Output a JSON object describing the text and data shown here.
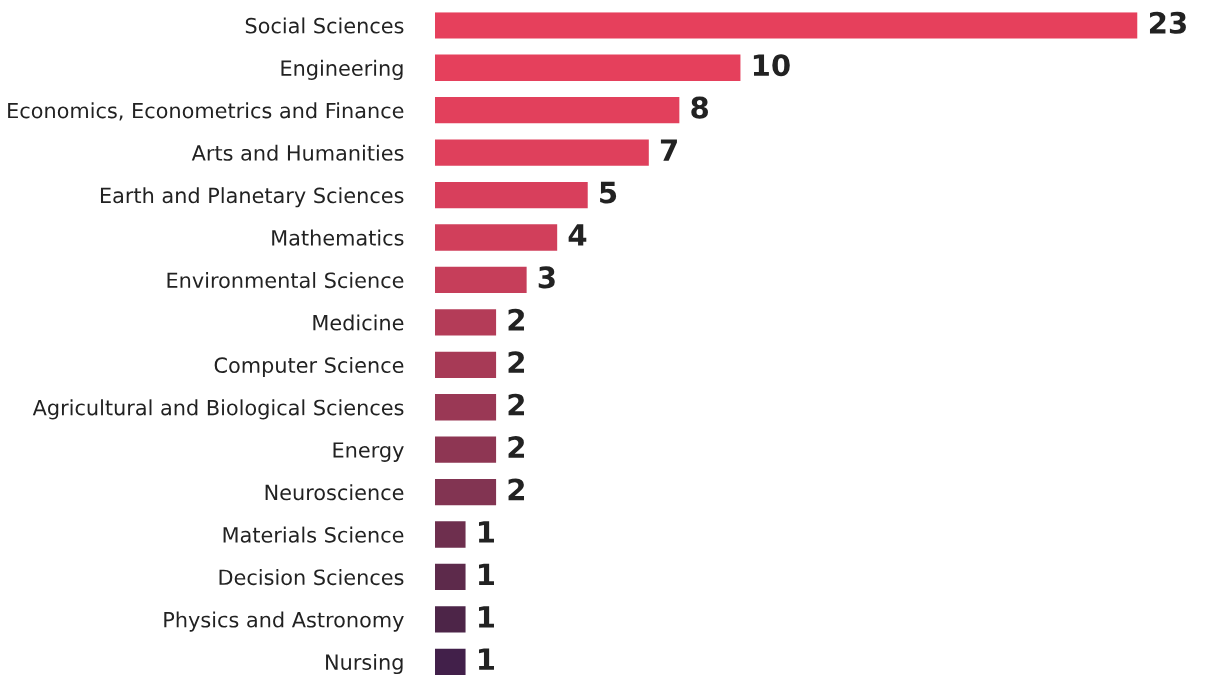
{
  "chart_data": {
    "type": "bar",
    "orientation": "horizontal",
    "data_labels": true,
    "grid": false,
    "legend": false,
    "tick_labels": "y",
    "categories": [
      "Social Sciences",
      "Engineering",
      "Economics, Econometrics and Finance",
      "Arts and Humanities",
      "Earth and Planetary Sciences",
      "Mathematics",
      "Environmental Science",
      "Medicine",
      "Computer Science",
      "Agricultural and Biological Sciences",
      "Energy",
      "Neuroscience",
      "Materials Science",
      "Decision Sciences",
      "Physics and Astronomy",
      "Nursing"
    ],
    "values": [
      23,
      10,
      8,
      7,
      5,
      4,
      3,
      2,
      2,
      2,
      2,
      2,
      1,
      1,
      1,
      1
    ],
    "colors": [
      "#e6405c",
      "#e5405c",
      "#e2405c",
      "#df405c",
      "#d83f5c",
      "#d13f5b",
      "#c63e5a",
      "#b43c58",
      "#a73a56",
      "#9a3855",
      "#8e3653",
      "#823452",
      "#6e2f4e",
      "#5d2a4b",
      "#4d2548",
      "#42204a"
    ]
  }
}
